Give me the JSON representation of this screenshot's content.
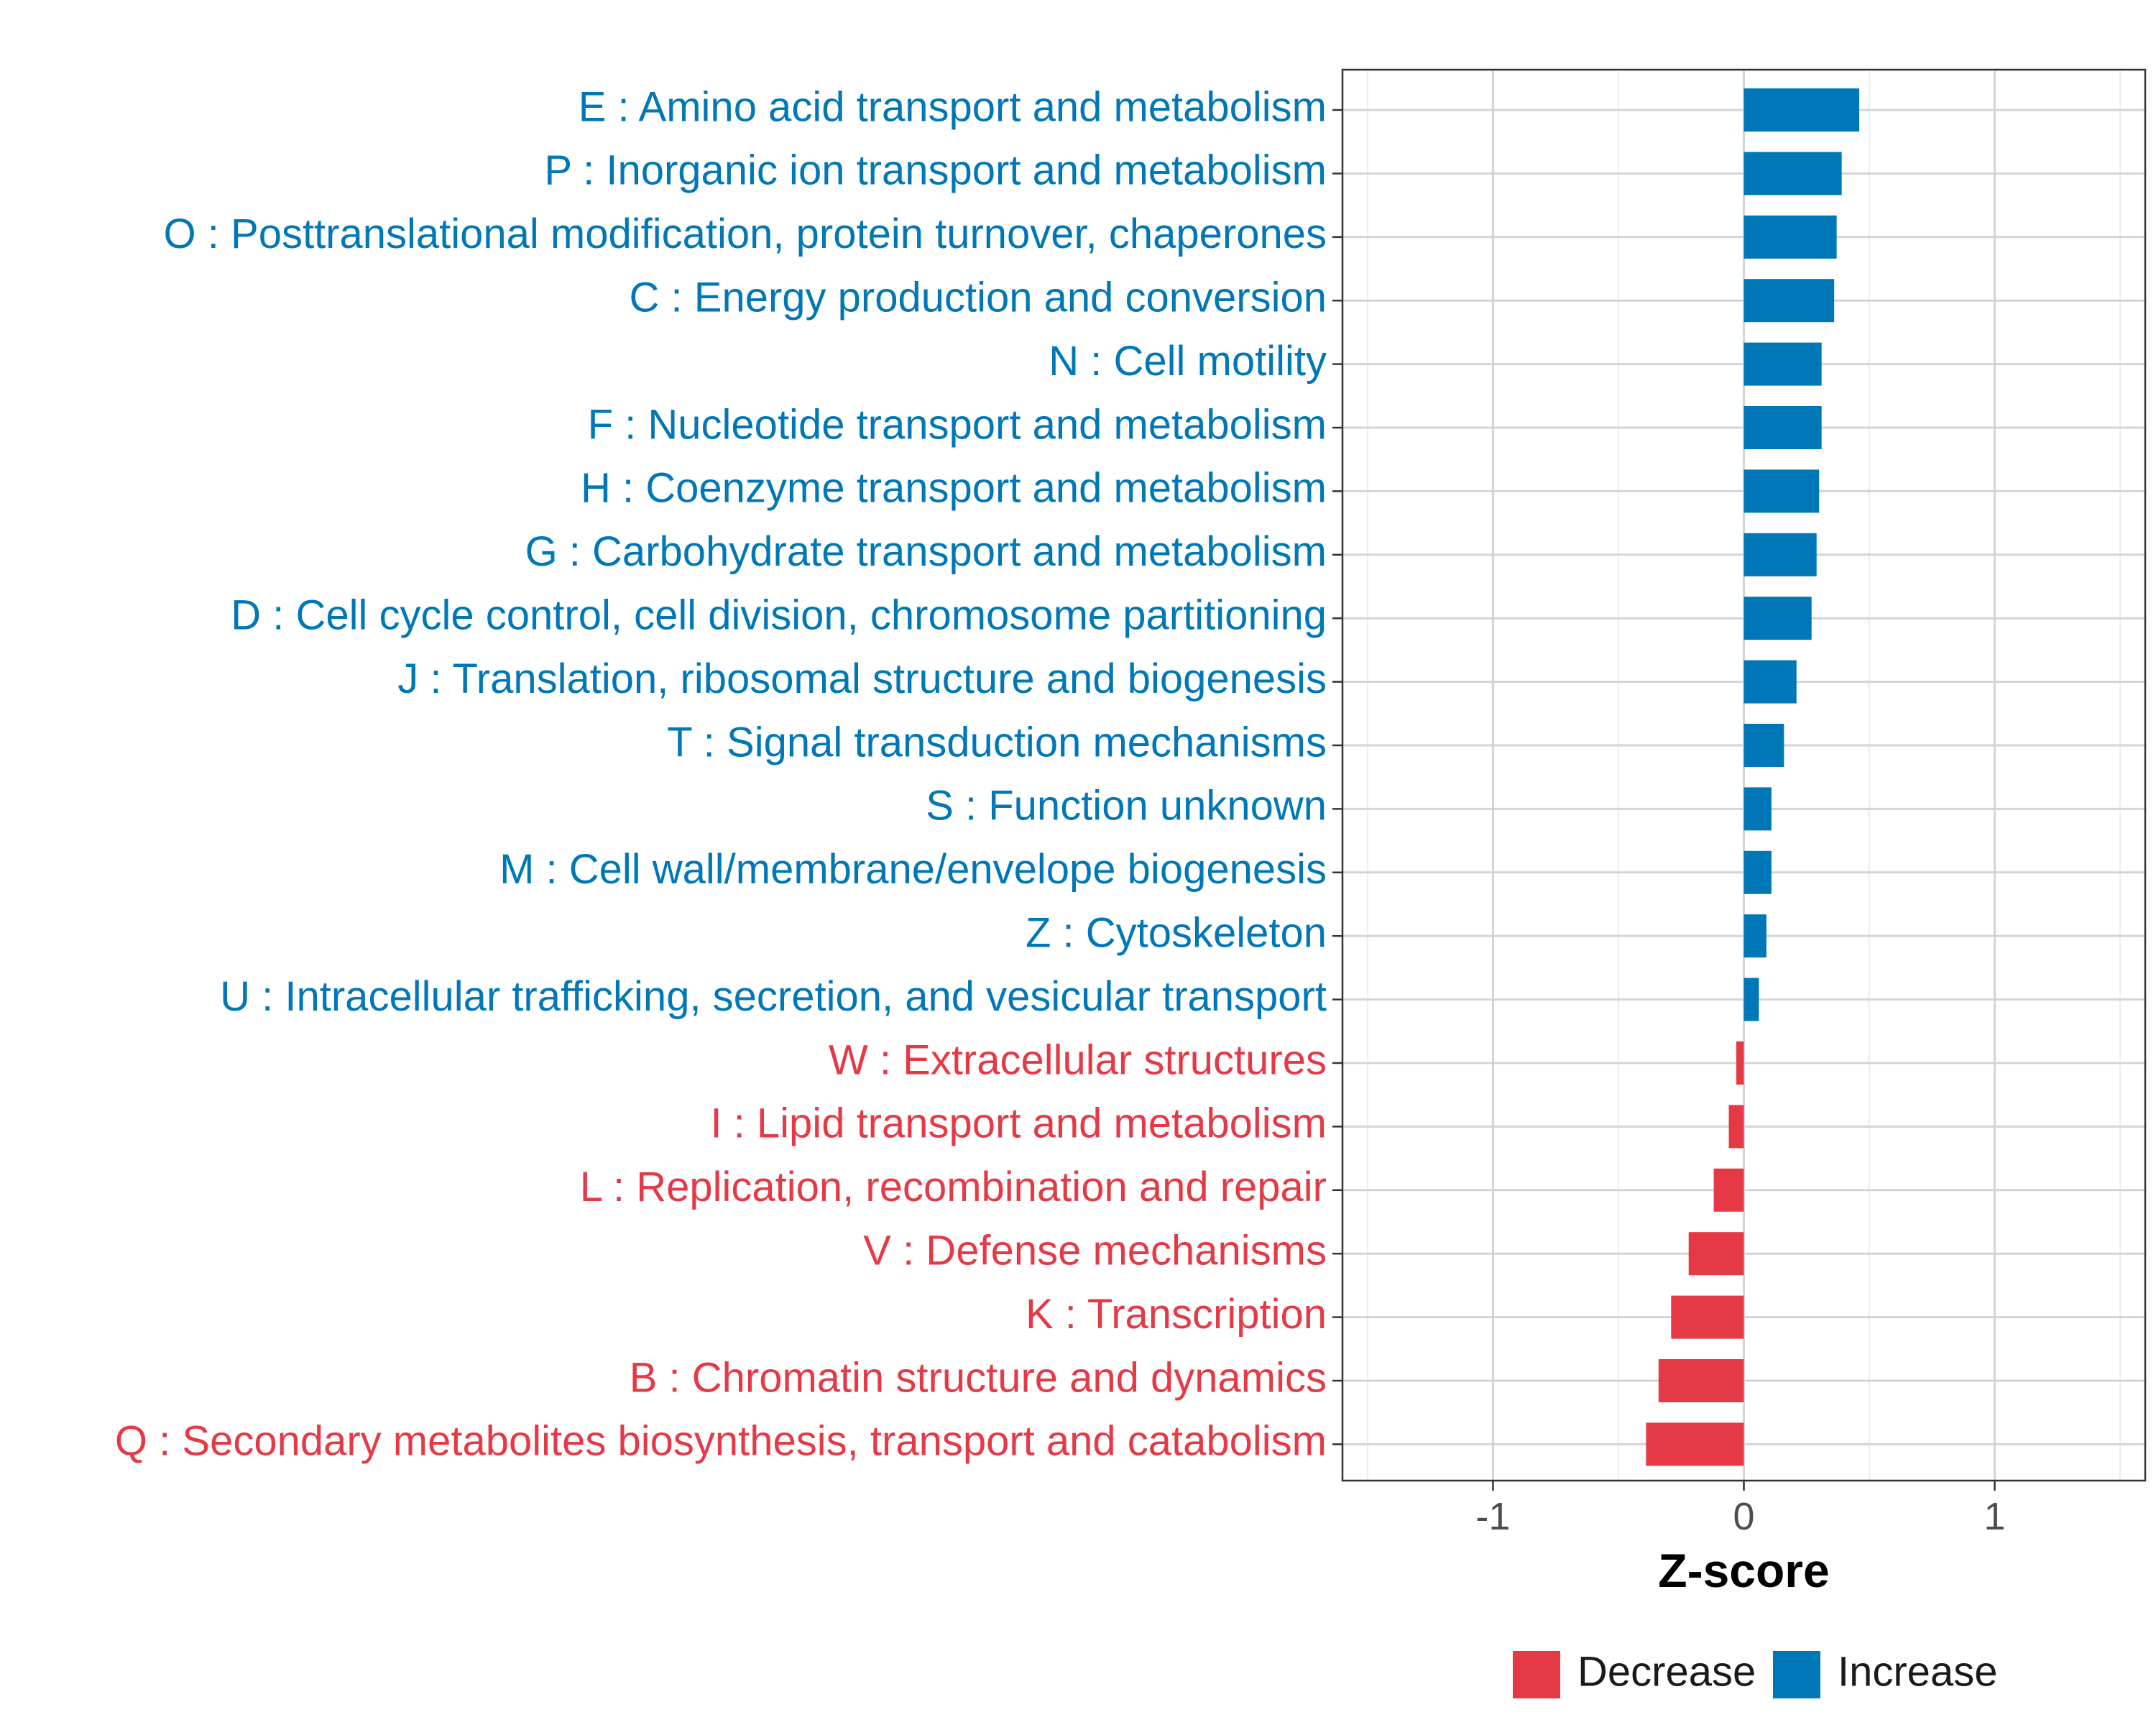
{
  "chart_data": {
    "type": "bar",
    "orientation": "horizontal",
    "title": "",
    "xlabel": "Z-score",
    "ylabel": "",
    "xlim": [
      -1.6,
      1.6
    ],
    "xticks": [
      -1,
      0,
      1
    ],
    "xtick_labels": [
      "-1",
      "0",
      "1"
    ],
    "grid": true,
    "legend_position": "bottom",
    "legend": [
      {
        "key": "decrease",
        "label": "Decrease"
      },
      {
        "key": "increase",
        "label": "Increase"
      }
    ],
    "colors": {
      "decrease": "#E63946",
      "increase": "#0077B6"
    },
    "bars": [
      {
        "label": "E : Amino acid transport and metabolism",
        "value": 0.46,
        "group": "increase"
      },
      {
        "label": "P : Inorganic ion transport and metabolism",
        "value": 0.39,
        "group": "increase"
      },
      {
        "label": "O : Posttranslational modification, protein turnover, chaperones",
        "value": 0.37,
        "group": "increase"
      },
      {
        "label": "C : Energy production and conversion",
        "value": 0.36,
        "group": "increase"
      },
      {
        "label": "N : Cell motility",
        "value": 0.31,
        "group": "increase"
      },
      {
        "label": "F : Nucleotide transport and metabolism",
        "value": 0.31,
        "group": "increase"
      },
      {
        "label": "H : Coenzyme transport and metabolism",
        "value": 0.3,
        "group": "increase"
      },
      {
        "label": "G : Carbohydrate transport and metabolism",
        "value": 0.29,
        "group": "increase"
      },
      {
        "label": "D : Cell cycle control, cell division, chromosome partitioning",
        "value": 0.27,
        "group": "increase"
      },
      {
        "label": "J : Translation, ribosomal structure and biogenesis",
        "value": 0.21,
        "group": "increase"
      },
      {
        "label": "T : Signal transduction mechanisms",
        "value": 0.16,
        "group": "increase"
      },
      {
        "label": "S : Function unknown",
        "value": 0.11,
        "group": "increase"
      },
      {
        "label": "M : Cell wall/membrane/envelope biogenesis",
        "value": 0.11,
        "group": "increase"
      },
      {
        "label": "Z : Cytoskeleton",
        "value": 0.09,
        "group": "increase"
      },
      {
        "label": "U : Intracellular trafficking, secretion, and vesicular transport",
        "value": 0.06,
        "group": "increase"
      },
      {
        "label": "W : Extracellular structures",
        "value": -0.03,
        "group": "decrease"
      },
      {
        "label": "I : Lipid transport and metabolism",
        "value": -0.06,
        "group": "decrease"
      },
      {
        "label": "L : Replication, recombination and repair",
        "value": -0.12,
        "group": "decrease"
      },
      {
        "label": "V : Defense mechanisms",
        "value": -0.22,
        "group": "decrease"
      },
      {
        "label": "K : Transcription",
        "value": -0.29,
        "group": "decrease"
      },
      {
        "label": "B : Chromatin structure and dynamics",
        "value": -0.34,
        "group": "decrease"
      },
      {
        "label": "Q : Secondary metabolites biosynthesis, transport and catabolism",
        "value": -0.39,
        "group": "decrease"
      }
    ]
  }
}
